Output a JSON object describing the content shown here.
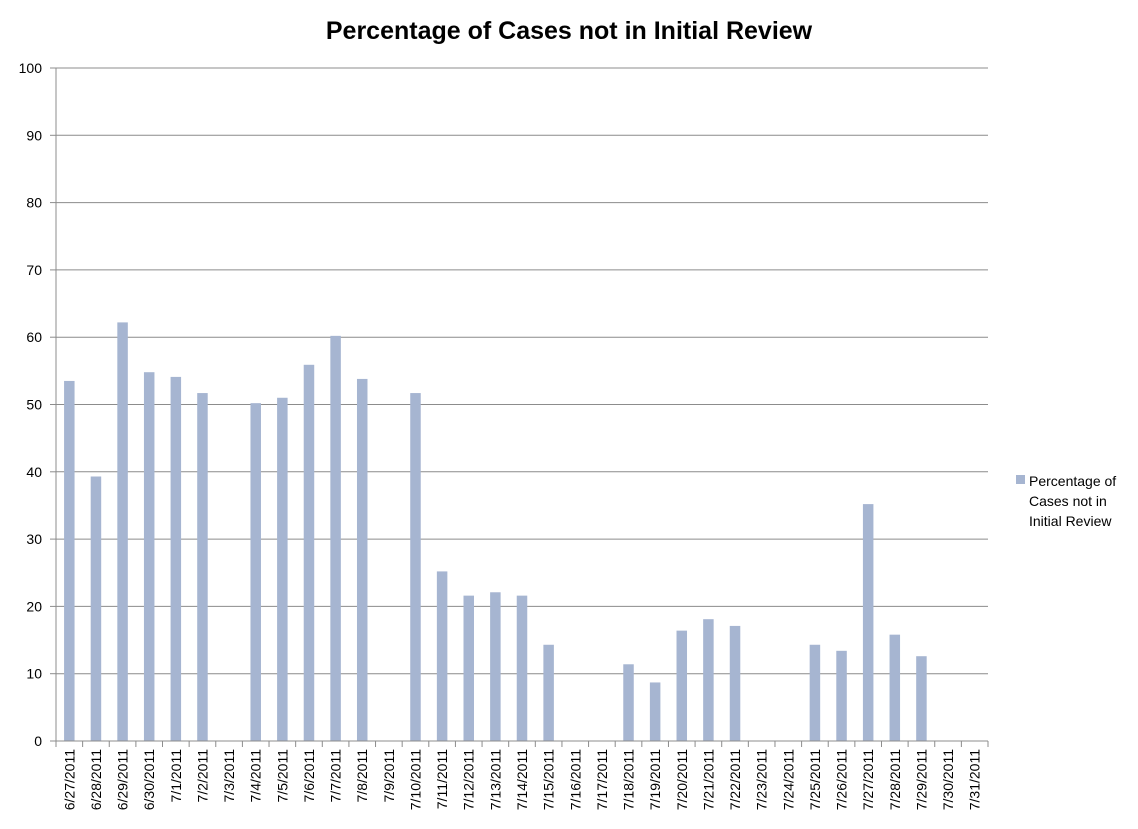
{
  "chart_data": {
    "type": "bar",
    "title": "Percentage of Cases not in Initial Review",
    "xlabel": "",
    "ylabel": "",
    "ylim": [
      0,
      100
    ],
    "yticks": [
      "0",
      "10",
      "20",
      "30",
      "40",
      "50",
      "60",
      "70",
      "80",
      "90",
      "100"
    ],
    "grid": true,
    "legend_position": "right",
    "color": "#a6b5d1",
    "categories": [
      "6/27/2011",
      "6/28/2011",
      "6/29/2011",
      "6/30/2011",
      "7/1/2011",
      "7/2/2011",
      "7/3/2011",
      "7/4/2011",
      "7/5/2011",
      "7/6/2011",
      "7/7/2011",
      "7/8/2011",
      "7/9/2011",
      "7/10/2011",
      "7/11/2011",
      "7/12/2011",
      "7/13/2011",
      "7/14/2011",
      "7/15/2011",
      "7/16/2011",
      "7/17/2011",
      "7/18/2011",
      "7/19/2011",
      "7/20/2011",
      "7/21/2011",
      "7/22/2011",
      "7/23/2011",
      "7/24/2011",
      "7/25/2011",
      "7/26/2011",
      "7/27/2011",
      "7/28/2011",
      "7/29/2011",
      "7/30/2011",
      "7/31/2011"
    ],
    "series": [
      {
        "name": "Percentage of Cases not in Initial Review",
        "legend_lines": [
          "Percentage of",
          "Cases not in",
          "Initial Review"
        ],
        "values": [
          53.5,
          39.3,
          62.2,
          54.8,
          54.1,
          51.7,
          null,
          50.2,
          51.0,
          55.9,
          60.2,
          53.8,
          null,
          51.7,
          25.2,
          21.6,
          22.1,
          21.6,
          14.3,
          null,
          null,
          11.4,
          8.7,
          16.4,
          18.1,
          17.1,
          null,
          null,
          14.3,
          13.4,
          35.2,
          15.8,
          12.6,
          null,
          null
        ]
      }
    ]
  }
}
